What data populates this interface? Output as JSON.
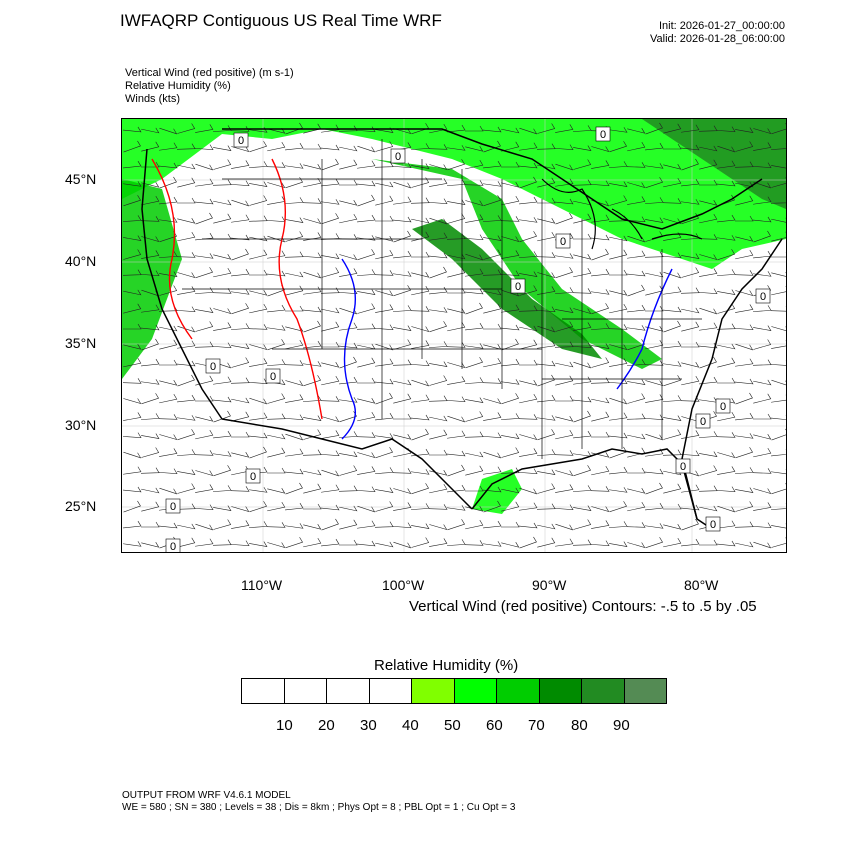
{
  "title": "IWFAQRP Contiguous US Real Time WRF",
  "init": "Init: 2026-01-27_00:00:00",
  "valid": "Valid: 2026-01-28_06:00:00",
  "fields": [
    "Vertical Wind (red positive)   (m s-1)",
    "Relative Humidity   (%)",
    "Winds   (kts)"
  ],
  "lat_labels": [
    "45°N",
    "40°N",
    "35°N",
    "30°N",
    "25°N"
  ],
  "lon_labels": [
    "110°W",
    "100°W",
    "90°W",
    "80°W"
  ],
  "contour_info": "Vertical Wind (red positive) Contours: -.5 to .5 by .05",
  "labelbar": {
    "title": "Relative Humidity  (%)",
    "colors": [
      "#ffffff",
      "#ffffff",
      "#ffffff",
      "#ffffff",
      "#80ff00",
      "#00ff00",
      "#00cd00",
      "#008b00",
      "#228b22",
      "#548b54"
    ],
    "ticks": [
      "10",
      "20",
      "30",
      "40",
      "50",
      "60",
      "70",
      "80",
      "90"
    ]
  },
  "footer": {
    "line1": "OUTPUT FROM WRF V4.6.1 MODEL",
    "line2": "WE = 580 ; SN = 380 ; Levels = 38 ; Dis = 8km ; Phys Opt = 8 ; PBL Opt = 1 ; Cu Opt = 3"
  },
  "map": {
    "rh_colors": {
      "g50": "#80ff00",
      "g60": "#00ff00",
      "g70": "#00cd00",
      "g80": "#008b00",
      "g90": "#228b22",
      "g100": "#548b54"
    },
    "wind_positive_color": "#ff0000",
    "wind_negative_color": "#0000ff",
    "contour_label": "0"
  }
}
